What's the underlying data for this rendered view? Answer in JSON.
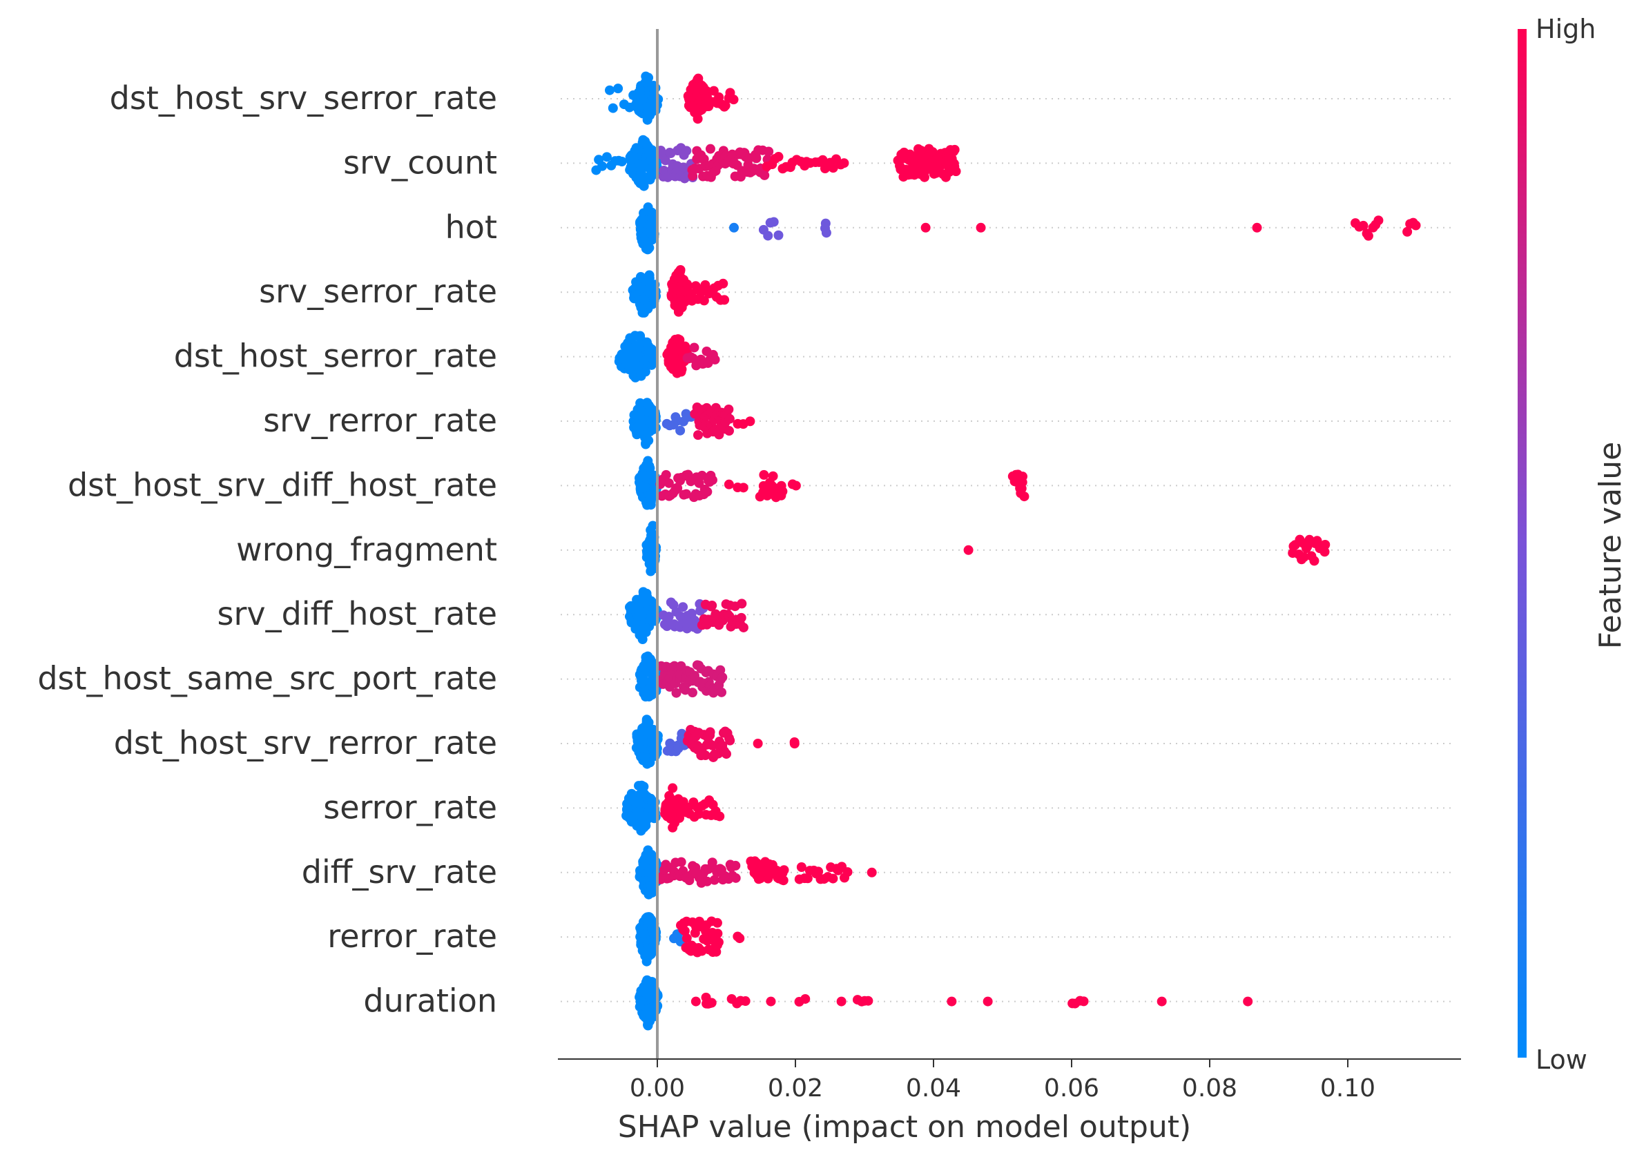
{
  "chart_data": {
    "type": "scatter",
    "subtype": "shap_beeswarm_summary",
    "title": "",
    "xlabel": "SHAP value (impact on model output)",
    "ylabel": "",
    "xlim": [
      -0.0145,
      0.1165
    ],
    "x_ticks": [
      0.0,
      0.02,
      0.04,
      0.06,
      0.08,
      0.1
    ],
    "x_tick_labels": [
      "0.00",
      "0.02",
      "0.04",
      "0.06",
      "0.08",
      "0.10"
    ],
    "colorbar": {
      "label": "Feature value",
      "high_label": "High",
      "low_label": "Low",
      "low_color": "#008afb",
      "mid_color": "#7a52d8",
      "high_color": "#ff0052"
    },
    "zero_line_color": "#999999",
    "features": [
      {
        "name": "dst_host_srv_serror_rate",
        "clusters": [
          [
            -0.007,
            -0.0005,
            0,
            10,
            0.4
          ],
          [
            -0.003,
            0,
            0,
            90,
            0.95
          ],
          [
            0.0045,
            0.0072,
            1,
            60,
            0.85
          ],
          [
            0.0072,
            0.011,
            1,
            12,
            0.35
          ]
        ]
      },
      {
        "name": "srv_count",
        "clusters": [
          [
            -0.009,
            -0.005,
            0,
            8,
            0.35
          ],
          [
            -0.004,
            0,
            0,
            90,
            0.95
          ],
          [
            0.0005,
            0.005,
            0.55,
            28,
            0.6
          ],
          [
            0.005,
            0.016,
            0.9,
            70,
            0.55
          ],
          [
            0.016,
            0.027,
            1,
            22,
            0.25
          ],
          [
            0.035,
            0.0432,
            1,
            80,
            0.55
          ]
        ]
      },
      {
        "name": "hot",
        "clusters": [
          [
            -0.0025,
            -0.0005,
            0,
            70,
            1.0
          ],
          [
            0.0112,
            0.0112,
            0.1,
            1,
            0
          ],
          [
            0.0155,
            0.0175,
            0.45,
            5,
            0.4
          ],
          [
            0.0242,
            0.0245,
            0.45,
            3,
            0.3
          ],
          [
            0.039,
            0.039,
            1,
            1,
            0
          ],
          [
            0.047,
            0.047,
            1,
            1,
            0
          ],
          [
            0.087,
            0.087,
            1,
            1,
            0
          ],
          [
            0.1012,
            0.1045,
            1,
            8,
            0.35
          ],
          [
            0.1085,
            0.1098,
            1,
            4,
            0.2
          ]
        ]
      },
      {
        "name": "srv_serror_rate",
        "clusters": [
          [
            -0.0035,
            -0.0002,
            0,
            80,
            0.95
          ],
          [
            0.002,
            0.0045,
            1,
            60,
            0.9
          ],
          [
            0.0045,
            0.0098,
            1,
            18,
            0.35
          ]
        ]
      },
      {
        "name": "dst_host_serror_rate",
        "clusters": [
          [
            -0.0055,
            -0.0005,
            0,
            80,
            0.95
          ],
          [
            0.0015,
            0.0045,
            1,
            50,
            0.8
          ],
          [
            0.0045,
            0.0085,
            0.9,
            15,
            0.35
          ]
        ]
      },
      {
        "name": "srv_rerror_rate",
        "clusters": [
          [
            -0.0035,
            -0.0002,
            0,
            70,
            0.95
          ],
          [
            0.0015,
            0.0055,
            0.3,
            12,
            0.4
          ],
          [
            0.0055,
            0.0105,
            0.95,
            40,
            0.55
          ],
          [
            0.0115,
            0.0135,
            1,
            3,
            0.2
          ]
        ]
      },
      {
        "name": "dst_host_srv_diff_host_rate",
        "clusters": [
          [
            -0.0025,
            -0.0002,
            0,
            110,
            1.0
          ],
          [
            0.0005,
            0.008,
            0.9,
            35,
            0.45
          ],
          [
            0.0105,
            0.0125,
            1,
            3,
            0.1
          ],
          [
            0.015,
            0.0182,
            1,
            18,
            0.45
          ],
          [
            0.0195,
            0.02,
            1,
            2,
            0.1
          ],
          [
            0.0515,
            0.0532,
            1,
            12,
            0.45
          ]
        ]
      },
      {
        "name": "wrong_fragment",
        "clusters": [
          [
            -0.0015,
            -0.0002,
            0,
            60,
            1.0
          ],
          [
            0.045,
            0.045,
            1,
            1,
            0
          ],
          [
            0.092,
            0.0968,
            1,
            20,
            0.45
          ]
        ]
      },
      {
        "name": "srv_diff_host_rate",
        "clusters": [
          [
            -0.004,
            0,
            0,
            90,
            1.0
          ],
          [
            0.001,
            0.0065,
            0.5,
            28,
            0.55
          ],
          [
            0.0065,
            0.0125,
            0.95,
            32,
            0.5
          ]
        ]
      },
      {
        "name": "dst_host_same_src_port_rate",
        "clusters": [
          [
            -0.0025,
            0,
            0,
            90,
            1.0
          ],
          [
            0.0005,
            0.0095,
            0.85,
            55,
            0.55
          ]
        ]
      },
      {
        "name": "dst_host_srv_rerror_rate",
        "clusters": [
          [
            -0.003,
            0,
            0,
            80,
            1.0
          ],
          [
            0.0015,
            0.0045,
            0.35,
            14,
            0.4
          ],
          [
            0.0045,
            0.0105,
            0.95,
            38,
            0.55
          ],
          [
            0.0145,
            0.0145,
            1,
            1,
            0
          ],
          [
            0.0198,
            0.02,
            1,
            2,
            0.1
          ]
        ]
      },
      {
        "name": "serror_rate",
        "clusters": [
          [
            -0.0045,
            -0.0002,
            0,
            90,
            1.0
          ],
          [
            0.001,
            0.0035,
            1,
            40,
            0.8
          ],
          [
            0.0035,
            0.009,
            1,
            18,
            0.35
          ]
        ]
      },
      {
        "name": "diff_srv_rate",
        "clusters": [
          [
            -0.0025,
            0,
            0,
            90,
            1.0
          ],
          [
            0.0005,
            0.0115,
            0.9,
            45,
            0.4
          ],
          [
            0.0135,
            0.0185,
            1,
            30,
            0.45
          ],
          [
            0.0205,
            0.0275,
            1,
            18,
            0.3
          ],
          [
            0.031,
            0.031,
            1,
            1,
            0
          ]
        ]
      },
      {
        "name": "rerror_rate",
        "clusters": [
          [
            -0.0025,
            -0.0002,
            0,
            80,
            1.0
          ],
          [
            0.0025,
            0.0035,
            0.1,
            4,
            0.2
          ],
          [
            0.0035,
            0.009,
            1,
            40,
            0.6
          ],
          [
            0.0115,
            0.012,
            1,
            2,
            0.1
          ]
        ]
      },
      {
        "name": "duration",
        "clusters": [
          [
            -0.0025,
            0,
            0,
            80,
            1.0
          ],
          [
            0.0055,
            0.0055,
            1,
            1,
            0
          ],
          [
            0.007,
            0.008,
            1,
            5,
            0.2
          ],
          [
            0.0108,
            0.0128,
            1,
            4,
            0.1
          ],
          [
            0.0165,
            0.0165,
            1,
            1,
            0
          ],
          [
            0.0205,
            0.0215,
            1,
            2,
            0.1
          ],
          [
            0.0268,
            0.0268,
            1,
            1,
            0
          ],
          [
            0.029,
            0.0305,
            1,
            4,
            0.1
          ],
          [
            0.0425,
            0.0425,
            1,
            1,
            0
          ],
          [
            0.0478,
            0.0478,
            1,
            1,
            0
          ],
          [
            0.06,
            0.0618,
            1,
            4,
            0.1
          ],
          [
            0.073,
            0.073,
            1,
            1,
            0
          ],
          [
            0.0855,
            0.0855,
            1,
            1,
            0
          ]
        ]
      }
    ]
  }
}
